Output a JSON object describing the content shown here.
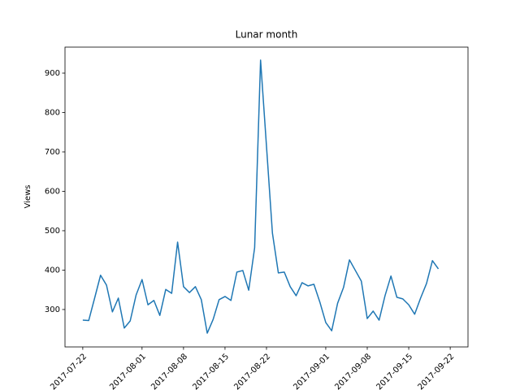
{
  "chart_data": {
    "type": "line",
    "title": "Lunar month",
    "y_label": "Views",
    "x": [
      "2017-07-22",
      "2017-07-23",
      "2017-07-24",
      "2017-07-25",
      "2017-07-26",
      "2017-07-27",
      "2017-07-28",
      "2017-07-29",
      "2017-07-30",
      "2017-07-31",
      "2017-08-01",
      "2017-08-02",
      "2017-08-03",
      "2017-08-04",
      "2017-08-05",
      "2017-08-06",
      "2017-08-07",
      "2017-08-08",
      "2017-08-09",
      "2017-08-10",
      "2017-08-11",
      "2017-08-12",
      "2017-08-13",
      "2017-08-14",
      "2017-08-15",
      "2017-08-16",
      "2017-08-17",
      "2017-08-18",
      "2017-08-19",
      "2017-08-20",
      "2017-08-21",
      "2017-08-22",
      "2017-08-23",
      "2017-08-24",
      "2017-08-25",
      "2017-08-26",
      "2017-08-27",
      "2017-08-28",
      "2017-08-29",
      "2017-08-30",
      "2017-08-31",
      "2017-09-01",
      "2017-09-02",
      "2017-09-03",
      "2017-09-04",
      "2017-09-05",
      "2017-09-06",
      "2017-09-07",
      "2017-09-08",
      "2017-09-09",
      "2017-09-10",
      "2017-09-11",
      "2017-09-12",
      "2017-09-13",
      "2017-09-14",
      "2017-09-15",
      "2017-09-16",
      "2017-09-17",
      "2017-09-18",
      "2017-09-19",
      "2017-09-20"
    ],
    "series": [
      {
        "name": "Views",
        "color": "#1f77b4",
        "values": [
          273,
          272,
          329,
          387,
          362,
          294,
          329,
          253,
          271,
          337,
          376,
          312,
          323,
          285,
          351,
          341,
          471,
          358,
          343,
          358,
          325,
          240,
          275,
          325,
          333,
          323,
          395,
          399,
          349,
          457,
          933,
          714,
          494,
          393,
          395,
          358,
          335,
          368,
          360,
          364,
          319,
          267,
          246,
          316,
          356,
          426,
          399,
          372,
          277,
          296,
          273,
          335,
          385,
          331,
          327,
          312,
          288,
          329,
          366,
          424,
          403
        ]
      }
    ],
    "xlim": [
      "2017-07-19",
      "2017-09-25"
    ],
    "xticks": [
      "2017-07-22",
      "2017-08-01",
      "2017-08-08",
      "2017-08-15",
      "2017-08-22",
      "2017-09-01",
      "2017-09-08",
      "2017-09-15",
      "2017-09-22"
    ],
    "ylim": [
      205,
      966
    ],
    "yticks": [
      300,
      400,
      500,
      600,
      700,
      800,
      900
    ]
  }
}
